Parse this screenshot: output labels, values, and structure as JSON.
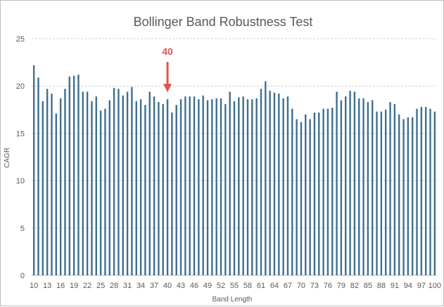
{
  "chart_data": {
    "type": "bar",
    "title": "Bollinger Band Robustness Test",
    "xlabel": "Band Length",
    "ylabel": "CAGR",
    "ylim": [
      0,
      25
    ],
    "yticks": [
      0,
      5,
      10,
      15,
      20,
      25
    ],
    "grid": true,
    "x": [
      10,
      11,
      12,
      13,
      14,
      15,
      16,
      17,
      18,
      19,
      20,
      21,
      22,
      23,
      24,
      25,
      26,
      27,
      28,
      29,
      30,
      31,
      32,
      33,
      34,
      35,
      36,
      37,
      38,
      39,
      40,
      41,
      42,
      43,
      44,
      45,
      46,
      47,
      48,
      49,
      50,
      51,
      52,
      53,
      54,
      55,
      56,
      57,
      58,
      59,
      60,
      61,
      62,
      63,
      64,
      65,
      66,
      67,
      68,
      69,
      70,
      71,
      72,
      73,
      74,
      75,
      76,
      77,
      78,
      79,
      80,
      81,
      82,
      83,
      84,
      85,
      86,
      87,
      88,
      89,
      90,
      91,
      92,
      93,
      94,
      95,
      96,
      97,
      98,
      99,
      100
    ],
    "x_tick_labels": [
      "10",
      "13",
      "16",
      "19",
      "22",
      "25",
      "28",
      "31",
      "34",
      "37",
      "40",
      "43",
      "46",
      "49",
      "52",
      "55",
      "58",
      "61",
      "64",
      "67",
      "70",
      "73",
      "76",
      "79",
      "82",
      "85",
      "88",
      "91",
      "94",
      "97",
      "100"
    ],
    "values": [
      22.2,
      20.9,
      18.4,
      19.7,
      19.2,
      17.1,
      18.7,
      19.7,
      21.0,
      21.1,
      21.2,
      19.4,
      19.4,
      18.4,
      18.9,
      17.4,
      17.6,
      18.5,
      19.8,
      19.7,
      19.0,
      19.4,
      19.9,
      18.4,
      18.6,
      18.0,
      19.4,
      18.9,
      18.3,
      18.1,
      18.6,
      17.2,
      18.0,
      18.6,
      18.9,
      18.9,
      18.9,
      18.6,
      19.0,
      18.5,
      18.6,
      18.7,
      18.7,
      18.1,
      19.4,
      18.4,
      18.8,
      18.9,
      18.6,
      18.6,
      18.7,
      19.7,
      20.5,
      19.5,
      19.3,
      19.2,
      18.7,
      18.9,
      17.6,
      16.5,
      16.2,
      17.0,
      16.5,
      17.2,
      17.2,
      17.6,
      17.6,
      17.7,
      19.4,
      18.5,
      18.9,
      19.5,
      19.4,
      18.7,
      18.7,
      18.3,
      18.5,
      17.3,
      17.3,
      17.5,
      18.3,
      18.1,
      17.0,
      16.5,
      16.7,
      16.7,
      17.6,
      17.8,
      17.8,
      17.6,
      17.3
    ],
    "annotations": [
      {
        "text": "40",
        "x": 40
      }
    ]
  }
}
